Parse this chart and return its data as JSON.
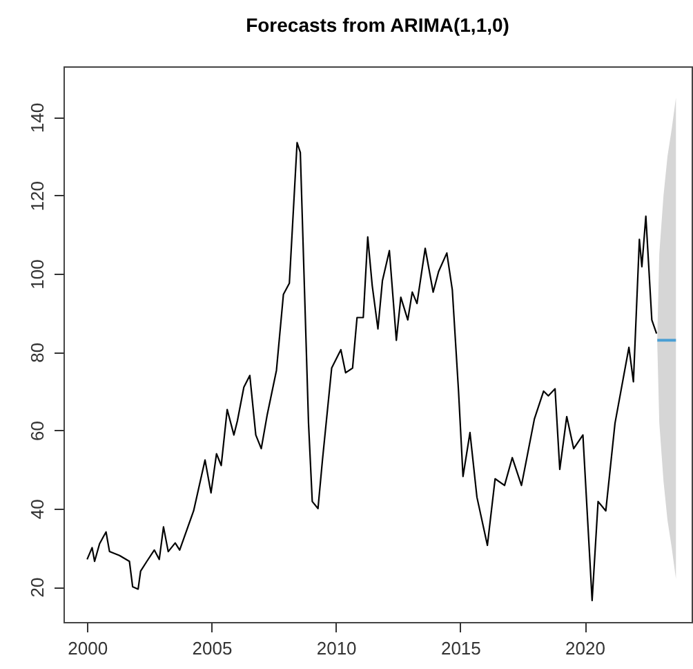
{
  "chart_data": {
    "type": "line",
    "title": "Forecasts from ARIMA(1,1,0)",
    "xlim": [
      1999.05,
      2024.3
    ],
    "ylim": [
      11,
      153
    ],
    "xticks": [
      2000,
      2005,
      2010,
      2015,
      2020
    ],
    "yticks": [
      20,
      40,
      60,
      80,
      100,
      120,
      140
    ],
    "grid": false,
    "line_style": "solid",
    "marker": "none",
    "series": [
      {
        "color": "#000000",
        "x": [
          2000.0,
          2000.2,
          2000.3,
          2000.5,
          2000.67,
          2000.76,
          2000.9,
          2001.3,
          2001.7,
          2001.83,
          2002.05,
          2002.15,
          2002.4,
          2002.7,
          2002.9,
          2003.07,
          2003.26,
          2003.54,
          2003.72,
          2004.28,
          2004.74,
          2004.98,
          2005.2,
          2005.39,
          2005.63,
          2005.9,
          2006.04,
          2006.3,
          2006.54,
          2006.78,
          2007.0,
          2007.24,
          2007.61,
          2007.89,
          2008.13,
          2008.44,
          2008.57,
          2008.9,
          2009.05,
          2009.28,
          2009.46,
          2009.83,
          2010.2,
          2010.39,
          2010.67,
          2010.85,
          2011.1,
          2011.28,
          2011.46,
          2011.69,
          2011.87,
          2012.15,
          2012.43,
          2012.61,
          2012.89,
          2013.07,
          2013.26,
          2013.59,
          2013.91,
          2014.13,
          2014.46,
          2014.68,
          2014.93,
          2015.11,
          2015.39,
          2015.67,
          2016.09,
          2016.4,
          2016.78,
          2017.09,
          2017.46,
          2017.98,
          2018.35,
          2018.54,
          2018.81,
          2019.0,
          2019.28,
          2019.56,
          2019.93,
          2020.3,
          2020.54,
          2020.85,
          2021.22,
          2021.78,
          2021.96,
          2022.2,
          2022.3,
          2022.46,
          2022.7,
          2022.89
        ],
        "values": [
          27,
          30,
          26.5,
          31,
          33,
          34,
          29,
          28,
          26.5,
          20,
          19.4,
          24,
          26.5,
          29.4,
          27,
          35.3,
          29,
          31.2,
          29.4,
          39.4,
          52.4,
          44,
          54,
          51,
          65.3,
          58.8,
          62.4,
          71,
          74,
          58.8,
          55.3,
          64,
          75.3,
          94.7,
          97.6,
          133.5,
          131,
          61.8,
          41.8,
          40,
          52.4,
          75.9,
          80.6,
          74.7,
          75.9,
          88.8,
          88.8,
          109.4,
          97,
          85.9,
          98.2,
          105.9,
          83,
          94,
          88.2,
          95.3,
          92.4,
          106.5,
          95.3,
          100.6,
          105.3,
          95.9,
          70,
          48.2,
          59.4,
          42.9,
          30.6,
          47.6,
          45.9,
          53,
          45.9,
          62.9,
          70,
          68.8,
          70.6,
          50,
          63.5,
          55.3,
          58.8,
          16.5,
          41.8,
          39.4,
          61.8,
          81.2,
          72.4,
          108.8,
          101.8,
          114.7,
          88.2,
          84.7
        ]
      },
      {
        "color": "#4a9fd4",
        "x": [
          2022.92,
          2023.0,
          2023.17,
          2023.33,
          2023.5,
          2023.67
        ],
        "values": [
          83,
          83,
          83,
          83,
          83,
          83
        ],
        "lower": [
          82,
          62,
          47,
          37,
          30,
          22
        ],
        "upper": [
          84,
          105,
          120,
          130,
          137,
          145
        ]
      }
    ]
  }
}
